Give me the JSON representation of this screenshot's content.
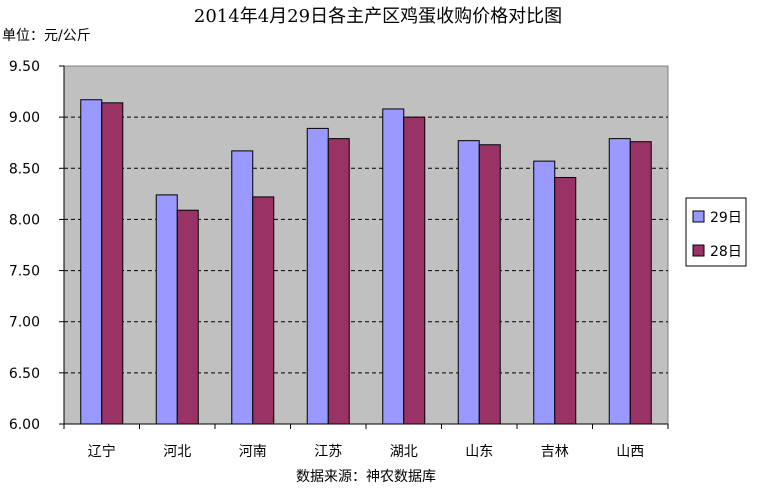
{
  "chart_data": {
    "type": "bar",
    "title": "2014年4月29日各主产区鸡蛋收购价格对比图",
    "unit_label": "单位：元/公斤",
    "source_label": "数据来源：神农数据库",
    "categories": [
      "辽宁",
      "河北",
      "河南",
      "江苏",
      "湖北",
      "山东",
      "吉林",
      "山西"
    ],
    "series": [
      {
        "name": "29日",
        "color": "#9999ff",
        "values": [
          9.17,
          8.24,
          8.67,
          8.89,
          9.08,
          8.77,
          8.57,
          8.79
        ]
      },
      {
        "name": "28日",
        "color": "#993366",
        "values": [
          9.14,
          8.09,
          8.22,
          8.79,
          9.0,
          8.73,
          8.41,
          8.76
        ]
      }
    ],
    "ylim": [
      6.0,
      9.5
    ],
    "y_ticks": [
      "6.00",
      "6.50",
      "7.00",
      "7.50",
      "8.00",
      "8.50",
      "9.00",
      "9.50"
    ],
    "grid": true,
    "plot_background": "#c0c0c0",
    "legend_position": "right"
  }
}
